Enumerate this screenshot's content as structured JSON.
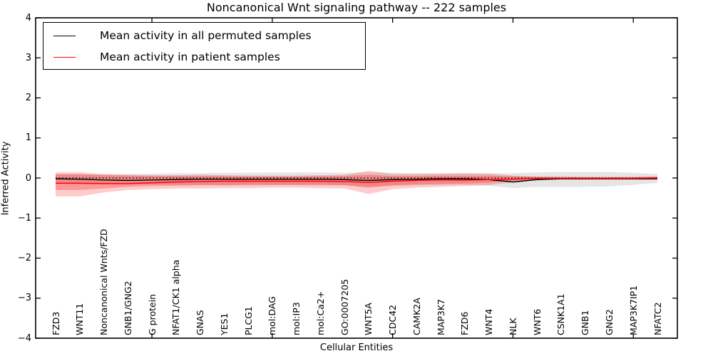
{
  "figure": {
    "title": "Noncanonical Wnt signaling pathway -- 222 samples",
    "xlabel": "Cellular Entities",
    "ylabel": "Inferred Activity"
  },
  "legend": {
    "entries": [
      {
        "label": "Mean activity in all permuted samples",
        "color": "#000000"
      },
      {
        "label": "Mean activity in patient samples",
        "color": "#ff0000"
      }
    ]
  },
  "chart_data": {
    "type": "line",
    "title": "Noncanonical Wnt signaling pathway -- 222 samples",
    "xlabel": "Cellular Entities",
    "ylabel": "Inferred Activity",
    "ylim": [
      -4,
      4
    ],
    "ytick_labels": [
      "4",
      "3",
      "2",
      "1",
      "0",
      "−1",
      "−2",
      "−3",
      "−4"
    ],
    "ytick_values": [
      4,
      3,
      2,
      1,
      0,
      -1,
      -2,
      -3,
      -4
    ],
    "xtick_category_indices": [
      4,
      9,
      14,
      19,
      24
    ],
    "grid": false,
    "legend_position": "upper left",
    "zero_line": {
      "y": 0,
      "style": "dotted",
      "color": "#000000"
    },
    "categories": [
      "FZD3",
      "WNT11",
      "Noncanonical Wnts/FZD",
      "GNB1/GNG2",
      "G protein",
      "NFAT1/CK1 alpha",
      "GNAS",
      "YES1",
      "PLCG1",
      "mol:DAG",
      "mol:IP3",
      "mol:Ca2+",
      "GO:0007205",
      "WNT5A",
      "CDC42",
      "CAMK2A",
      "MAP3K7",
      "FZD6",
      "WNT4",
      "NLK",
      "WNT6",
      "CSNK1A1",
      "GNB1",
      "GNG2",
      "MAP3K7IP1",
      "NFATC2"
    ],
    "series": [
      {
        "name": "Mean activity in all permuted samples",
        "color": "#000000",
        "values": [
          -0.02,
          -0.03,
          -0.05,
          -0.06,
          -0.05,
          -0.04,
          -0.03,
          -0.03,
          -0.03,
          -0.03,
          -0.03,
          -0.03,
          -0.04,
          -0.06,
          -0.04,
          -0.03,
          -0.02,
          -0.02,
          -0.04,
          -0.1,
          -0.04,
          -0.02,
          -0.02,
          -0.02,
          -0.02,
          -0.02
        ]
      },
      {
        "name": "Mean activity in patient samples",
        "color": "#ff0000",
        "values": [
          -0.13,
          -0.13,
          -0.14,
          -0.14,
          -0.12,
          -0.1,
          -0.09,
          -0.08,
          -0.08,
          -0.08,
          -0.08,
          -0.08,
          -0.09,
          -0.11,
          -0.08,
          -0.06,
          -0.05,
          -0.05,
          -0.04,
          -0.03,
          -0.01,
          -0.01,
          -0.01,
          -0.01,
          -0.01,
          0.0
        ]
      }
    ],
    "bands": [
      {
        "name": "permuted-samples-range",
        "color": "#8a8a8a",
        "opacity": 0.22,
        "hi": [
          0.08,
          0.08,
          0.09,
          0.1,
          0.11,
          0.12,
          0.12,
          0.13,
          0.13,
          0.14,
          0.14,
          0.14,
          0.13,
          0.14,
          0.13,
          0.12,
          0.12,
          0.12,
          0.12,
          0.12,
          0.14,
          0.15,
          0.15,
          0.15,
          0.13,
          0.1
        ],
        "lo": [
          -0.12,
          -0.12,
          -0.14,
          -0.15,
          -0.16,
          -0.17,
          -0.17,
          -0.18,
          -0.18,
          -0.18,
          -0.18,
          -0.18,
          -0.18,
          -0.22,
          -0.2,
          -0.18,
          -0.17,
          -0.17,
          -0.19,
          -0.25,
          -0.22,
          -0.22,
          -0.22,
          -0.21,
          -0.17,
          -0.12
        ]
      },
      {
        "name": "patient-samples-range-outer",
        "color": "#ff0000",
        "opacity": 0.2,
        "hi": [
          0.14,
          0.14,
          0.1,
          0.08,
          0.07,
          0.07,
          0.08,
          0.07,
          0.06,
          0.06,
          0.06,
          0.07,
          0.08,
          0.18,
          0.1,
          0.1,
          0.11,
          0.12,
          0.11,
          0.06,
          0.04,
          0.04,
          0.03,
          0.03,
          0.03,
          0.04
        ],
        "lo": [
          -0.46,
          -0.46,
          -0.36,
          -0.3,
          -0.28,
          -0.26,
          -0.26,
          -0.25,
          -0.25,
          -0.24,
          -0.24,
          -0.25,
          -0.26,
          -0.4,
          -0.28,
          -0.24,
          -0.22,
          -0.2,
          -0.18,
          -0.1,
          -0.05,
          -0.04,
          -0.04,
          -0.04,
          -0.04,
          -0.03
        ],
        "name_hint": "light pink band"
      },
      {
        "name": "patient-samples-range-inner",
        "color": "#ff0000",
        "opacity": 0.25,
        "hi": [
          0.1,
          0.1,
          0.07,
          0.06,
          0.05,
          0.05,
          0.05,
          0.05,
          0.04,
          0.04,
          0.04,
          0.05,
          0.05,
          0.08,
          0.05,
          0.05,
          0.06,
          0.06,
          0.06,
          0.04,
          0.03,
          0.02,
          0.02,
          0.02,
          0.02,
          0.03
        ],
        "lo": [
          -0.3,
          -0.3,
          -0.26,
          -0.22,
          -0.2,
          -0.19,
          -0.18,
          -0.18,
          -0.17,
          -0.17,
          -0.17,
          -0.17,
          -0.18,
          -0.24,
          -0.18,
          -0.16,
          -0.15,
          -0.14,
          -0.12,
          -0.07,
          -0.04,
          -0.03,
          -0.03,
          -0.03,
          -0.03,
          -0.02
        ]
      }
    ]
  }
}
